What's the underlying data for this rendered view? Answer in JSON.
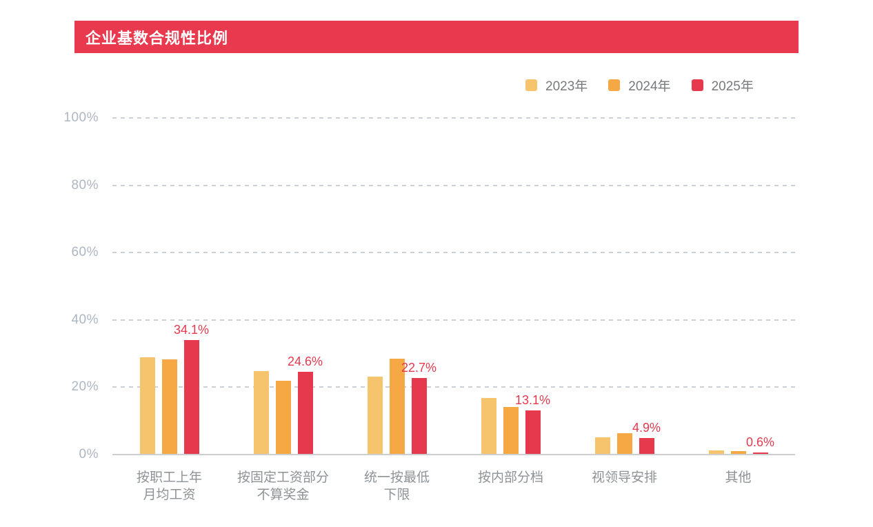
{
  "title": "企业基数合规性比例",
  "colors": {
    "banner": "#e8394e",
    "series_2023": "#f6c46c",
    "series_2024": "#f5a843",
    "series_2025": "#e6394e",
    "data_label": "#e6394e",
    "y_tick_label": "#aeb6c2",
    "x_tick_label": "#8e9296",
    "legend_text": "#77797d",
    "gridline": "#ccd1d7"
  },
  "legend": {
    "items": [
      {
        "label": "2023年",
        "color": "#f6c46c"
      },
      {
        "label": "2024年",
        "color": "#f5a843"
      },
      {
        "label": "2025年",
        "color": "#e6394e"
      }
    ]
  },
  "chart_data": {
    "type": "bar",
    "title": "企业基数合规性比例",
    "categories": [
      "按职工上年\n月均工资",
      "按固定工资部分\n不算奖金",
      "统一按最低\n下限",
      "按内部分档",
      "视领导安排",
      "其他"
    ],
    "series": [
      {
        "name": "2023年",
        "color": "#f6c46c",
        "values": [
          28.9,
          24.9,
          23.2,
          16.8,
          5.1,
          1.2
        ]
      },
      {
        "name": "2024年",
        "color": "#f5a843",
        "values": [
          28.2,
          21.9,
          28.4,
          14.1,
          6.3,
          1.0
        ]
      },
      {
        "name": "2025年",
        "color": "#e6394e",
        "values": [
          34.1,
          24.6,
          22.7,
          13.1,
          4.9,
          0.6
        ],
        "data_labels": [
          "34.1%",
          "24.6%",
          "22.7%",
          "13.1%",
          "4.9%",
          "0.6%"
        ]
      }
    ],
    "y_axis": {
      "ticks": [
        "0%",
        "20%",
        "40%",
        "60%",
        "80%",
        "100%"
      ],
      "min": 0,
      "max": 100,
      "grid": "dashed"
    },
    "xlabel": "",
    "ylabel": "",
    "legend_position": "top-right"
  }
}
